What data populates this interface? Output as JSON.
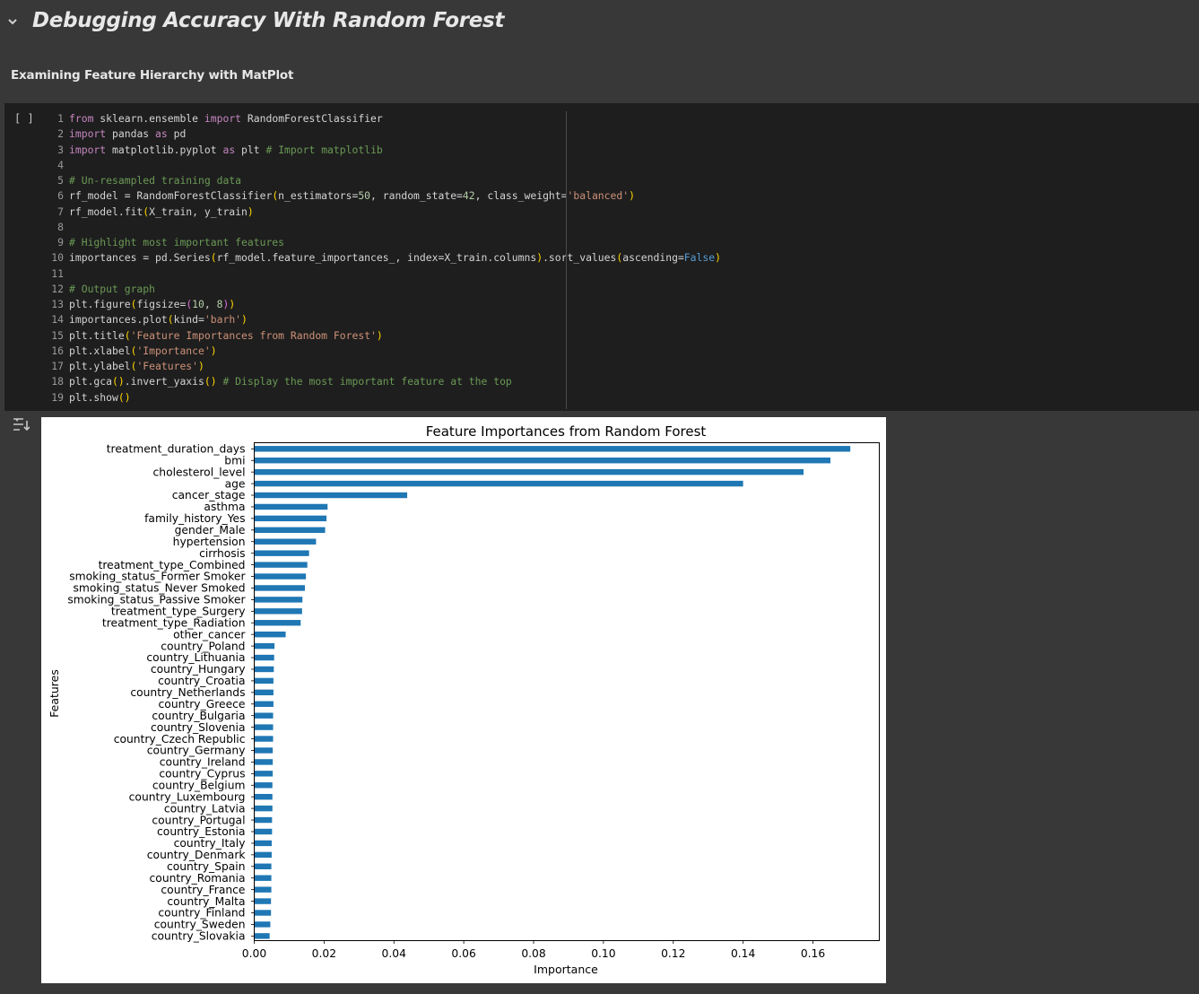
{
  "section": {
    "title": "Debugging Accuracy With Random Forest",
    "chevron_icon": "chevron-down-icon"
  },
  "subheading": "Examining Feature Hierarchy with MatPlot",
  "cell": {
    "run_label": "[ ]",
    "output_icon": "output-toggle-icon"
  },
  "code": [
    {
      "n": "1",
      "parts": [
        {
          "t": "from",
          "c": "kw"
        },
        {
          "t": " sklearn.ensemble "
        },
        {
          "t": "import",
          "c": "kw"
        },
        {
          "t": " RandomForestClassifier"
        }
      ]
    },
    {
      "n": "2",
      "parts": [
        {
          "t": "import",
          "c": "kw"
        },
        {
          "t": " pandas "
        },
        {
          "t": "as",
          "c": "kw"
        },
        {
          "t": " pd"
        }
      ]
    },
    {
      "n": "3",
      "parts": [
        {
          "t": "import",
          "c": "kw"
        },
        {
          "t": " matplotlib.pyplot "
        },
        {
          "t": "as",
          "c": "kw"
        },
        {
          "t": " plt "
        },
        {
          "t": "# Import matplotlib",
          "c": "cm"
        }
      ]
    },
    {
      "n": "4",
      "parts": []
    },
    {
      "n": "5",
      "parts": [
        {
          "t": "# Un-resampled training data",
          "c": "cm"
        }
      ]
    },
    {
      "n": "6",
      "parts": [
        {
          "t": "rf_model = RandomForestClassifier"
        },
        {
          "t": "(",
          "c": "p1"
        },
        {
          "t": "n_estimators="
        },
        {
          "t": "50",
          "c": "nu"
        },
        {
          "t": ", random_state="
        },
        {
          "t": "42",
          "c": "nu"
        },
        {
          "t": ", class_weight="
        },
        {
          "t": "'balanced'",
          "c": "st"
        },
        {
          "t": ")",
          "c": "p1"
        }
      ]
    },
    {
      "n": "7",
      "parts": [
        {
          "t": "rf_model.fit"
        },
        {
          "t": "(",
          "c": "p1"
        },
        {
          "t": "X_train, y_train"
        },
        {
          "t": ")",
          "c": "p1"
        }
      ]
    },
    {
      "n": "8",
      "parts": []
    },
    {
      "n": "9",
      "parts": [
        {
          "t": "# Highlight most important features",
          "c": "cm"
        }
      ]
    },
    {
      "n": "10",
      "parts": [
        {
          "t": "importances = pd.Series"
        },
        {
          "t": "(",
          "c": "p1"
        },
        {
          "t": "rf_model.feature_importances_, index=X_train.columns"
        },
        {
          "t": ")",
          "c": "p1"
        },
        {
          "t": ".sort_values"
        },
        {
          "t": "(",
          "c": "p1"
        },
        {
          "t": "ascending="
        },
        {
          "t": "False",
          "c": "bo"
        },
        {
          "t": ")",
          "c": "p1"
        }
      ]
    },
    {
      "n": "11",
      "parts": []
    },
    {
      "n": "12",
      "parts": [
        {
          "t": "# Output graph",
          "c": "cm"
        }
      ]
    },
    {
      "n": "13",
      "parts": [
        {
          "t": "plt.figure"
        },
        {
          "t": "(",
          "c": "p1"
        },
        {
          "t": "figsize="
        },
        {
          "t": "(",
          "c": "p2"
        },
        {
          "t": "10",
          "c": "nu"
        },
        {
          "t": ", "
        },
        {
          "t": "8",
          "c": "nu"
        },
        {
          "t": ")",
          "c": "p2"
        },
        {
          "t": ")",
          "c": "p1"
        }
      ]
    },
    {
      "n": "14",
      "parts": [
        {
          "t": "importances.plot"
        },
        {
          "t": "(",
          "c": "p1"
        },
        {
          "t": "kind="
        },
        {
          "t": "'barh'",
          "c": "st"
        },
        {
          "t": ")",
          "c": "p1"
        }
      ]
    },
    {
      "n": "15",
      "parts": [
        {
          "t": "plt.title"
        },
        {
          "t": "(",
          "c": "p1"
        },
        {
          "t": "'Feature Importances from Random Forest'",
          "c": "st"
        },
        {
          "t": ")",
          "c": "p1"
        }
      ]
    },
    {
      "n": "16",
      "parts": [
        {
          "t": "plt.xlabel"
        },
        {
          "t": "(",
          "c": "p1"
        },
        {
          "t": "'Importance'",
          "c": "st"
        },
        {
          "t": ")",
          "c": "p1"
        }
      ]
    },
    {
      "n": "17",
      "parts": [
        {
          "t": "plt.ylabel"
        },
        {
          "t": "(",
          "c": "p1"
        },
        {
          "t": "'Features'",
          "c": "st"
        },
        {
          "t": ")",
          "c": "p1"
        }
      ]
    },
    {
      "n": "18",
      "parts": [
        {
          "t": "plt.gca"
        },
        {
          "t": "()",
          "c": "p1"
        },
        {
          "t": ".invert_yaxis"
        },
        {
          "t": "()",
          "c": "p1"
        },
        {
          "t": " "
        },
        {
          "t": "# Display the most important feature at the top",
          "c": "cm"
        }
      ]
    },
    {
      "n": "19",
      "parts": [
        {
          "t": "plt.show"
        },
        {
          "t": "()",
          "c": "p1"
        }
      ]
    }
  ],
  "colors": {
    "bar": "#1f77b4"
  },
  "chart_data": {
    "type": "bar",
    "orientation": "horizontal",
    "title": "Feature Importances from Random Forest",
    "xlabel": "Importance",
    "ylabel": "Features",
    "xlim": [
      0,
      0.179
    ],
    "xticks": [
      "0.00",
      "0.02",
      "0.04",
      "0.06",
      "0.08",
      "0.10",
      "0.12",
      "0.14",
      "0.16"
    ],
    "grid": false,
    "categories": [
      "treatment_duration_days",
      "bmi",
      "cholesterol_level",
      "age",
      "cancer_stage",
      "asthma",
      "family_history_Yes",
      "gender_Male",
      "hypertension",
      "cirrhosis",
      "treatment_type_Combined",
      "smoking_status_Former Smoker",
      "smoking_status_Never Smoked",
      "smoking_status_Passive Smoker",
      "treatment_type_Surgery",
      "treatment_type_Radiation",
      "other_cancer",
      "country_Poland",
      "country_Lithuania",
      "country_Hungary",
      "country_Croatia",
      "country_Netherlands",
      "country_Greece",
      "country_Bulgaria",
      "country_Slovenia",
      "country_Czech Republic",
      "country_Germany",
      "country_Ireland",
      "country_Cyprus",
      "country_Belgium",
      "country_Luxembourg",
      "country_Latvia",
      "country_Portugal",
      "country_Estonia",
      "country_Italy",
      "country_Denmark",
      "country_Spain",
      "country_Romania",
      "country_France",
      "country_Malta",
      "country_Finland",
      "country_Sweden",
      "country_Slovakia"
    ],
    "values": [
      0.1707,
      0.165,
      0.1573,
      0.14,
      0.0438,
      0.021,
      0.0207,
      0.0203,
      0.0177,
      0.0157,
      0.0152,
      0.0148,
      0.0145,
      0.0138,
      0.0137,
      0.0133,
      0.009,
      0.0058,
      0.0057,
      0.0056,
      0.0055,
      0.0055,
      0.0055,
      0.0054,
      0.0054,
      0.0054,
      0.0053,
      0.0053,
      0.0053,
      0.0052,
      0.0052,
      0.0052,
      0.0051,
      0.0051,
      0.005,
      0.005,
      0.0049,
      0.0049,
      0.0049,
      0.0048,
      0.0048,
      0.0046,
      0.0044
    ]
  }
}
